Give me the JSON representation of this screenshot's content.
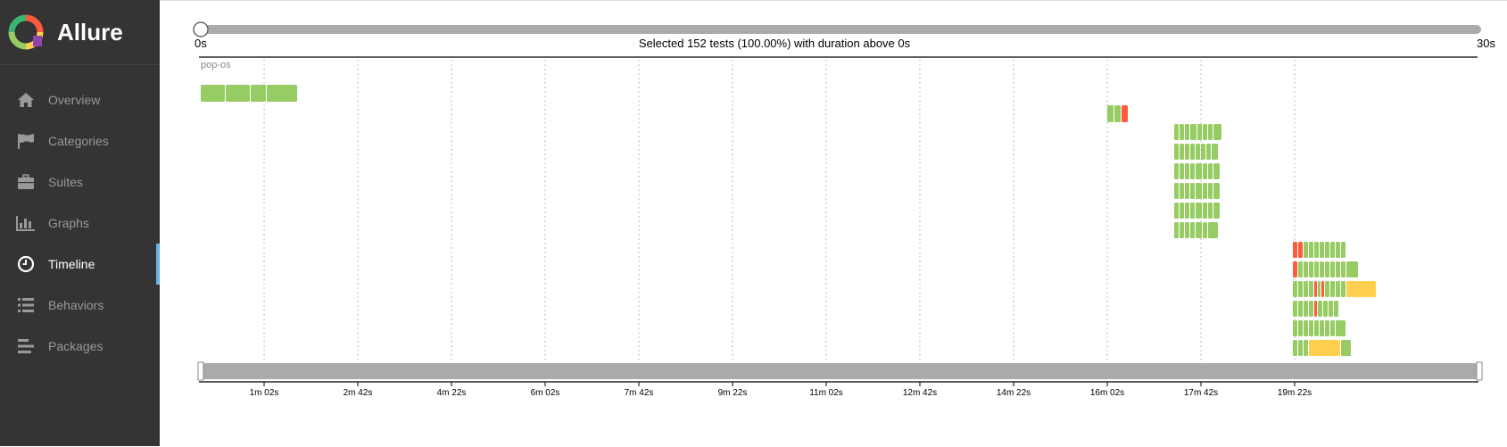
{
  "app": {
    "name": "Allure"
  },
  "nav": [
    {
      "label": "Overview",
      "icon": "home-icon",
      "active": false
    },
    {
      "label": "Categories",
      "icon": "flag-icon",
      "active": false
    },
    {
      "label": "Suites",
      "icon": "briefcase-icon",
      "active": false
    },
    {
      "label": "Graphs",
      "icon": "bar-chart-icon",
      "active": false
    },
    {
      "label": "Timeline",
      "icon": "clock-icon",
      "active": true
    },
    {
      "label": "Behaviors",
      "icon": "list-icon",
      "active": false
    },
    {
      "label": "Packages",
      "icon": "align-left-icon",
      "active": false
    }
  ],
  "slider": {
    "min_label": "0s",
    "max_label": "30s",
    "summary": "Selected 152 tests (100.00%) with duration above 0s",
    "position": 0
  },
  "timeline": {
    "host": "pop-os",
    "ticks": [
      "1m 02s",
      "2m 42s",
      "4m 22s",
      "6m 02s",
      "7m 42s",
      "9m 22s",
      "11m 02s",
      "12m 42s",
      "14m 22s",
      "16m 02s",
      "17m 42s",
      "19m 22s"
    ],
    "colors": {
      "passed": "#97cc64",
      "failed": "#fd5a3e",
      "broken": "#ffd050",
      "grid": "#bbbbbb",
      "brush": "#aaaaaa"
    }
  }
}
